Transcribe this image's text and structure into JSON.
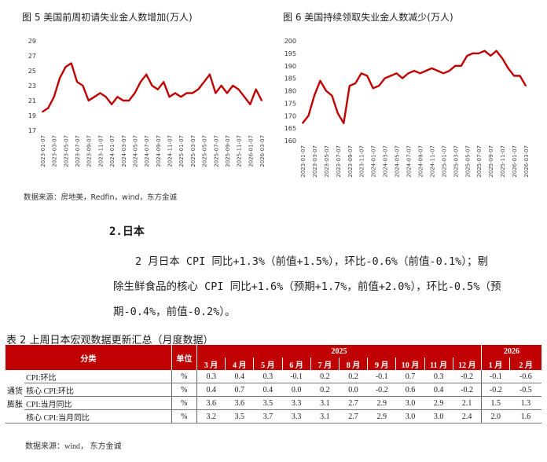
{
  "charts": {
    "fig5": {
      "title": "图 5  美国前周初请失业金人数增加(万人)",
      "yticks": [
        "29",
        "27",
        "25",
        "23",
        "21",
        "19",
        "17"
      ],
      "xticks": [
        "2023-01-07",
        "2023-03-07",
        "2023-05-07",
        "2023-07-07",
        "2023-09-07",
        "2023-11-07",
        "2024-01-07",
        "2024-03-07",
        "2024-05-07",
        "2024-07-07",
        "2024-09-07",
        "2024-11-07",
        "2025-01-07",
        "2025-03-07",
        "2025-05-07",
        "2025-07-07",
        "2025-09-07",
        "2025-11-07",
        "2026-01-07",
        "2026-03-07"
      ],
      "line_color": "#c00000"
    },
    "fig6": {
      "title": "图 6  美国持续领取失业金人数减少(万人)",
      "yticks": [
        "200",
        "195",
        "190",
        "185",
        "180",
        "175",
        "170",
        "165",
        "160"
      ],
      "xticks": [
        "2023-01-07",
        "2023-03-07",
        "2023-05-07",
        "2023-07-07",
        "2023-09-07",
        "2023-11-07",
        "2024-01-07",
        "2024-03-07",
        "2024-05-07",
        "2024-07-07",
        "2024-09-07",
        "2024-11-07",
        "2025-01-07",
        "2025-03-07",
        "2025-05-07",
        "2025-07-07",
        "2025-09-07",
        "2025-11-07",
        "2026-01-07",
        "2026-03-07"
      ],
      "line_color": "#c00000"
    },
    "source": "数据来源：房地美，Redfin，wind，东方金诚"
  },
  "chart_data": [
    {
      "type": "line",
      "title": "图 5  美国前周初请失业金人数增加(万人)",
      "x": [
        "2023-01",
        "2023-02",
        "2023-03",
        "2023-04",
        "2023-05",
        "2023-06",
        "2023-07",
        "2023-08",
        "2023-09",
        "2023-10",
        "2023-11",
        "2023-12",
        "2024-01",
        "2024-02",
        "2024-03",
        "2024-04",
        "2024-05",
        "2024-06",
        "2024-07",
        "2024-08",
        "2024-09",
        "2024-10",
        "2024-11",
        "2024-12",
        "2025-01",
        "2025-02",
        "2025-03",
        "2025-04",
        "2025-05",
        "2025-06",
        "2025-07",
        "2025-08",
        "2025-09",
        "2025-10",
        "2025-11",
        "2025-12",
        "2026-01",
        "2026-02",
        "2026-03"
      ],
      "values": [
        19.5,
        20.0,
        21.5,
        24.0,
        25.5,
        26.0,
        23.5,
        23.0,
        21.0,
        21.5,
        22.0,
        21.5,
        20.5,
        21.5,
        21.0,
        21.0,
        22.0,
        23.5,
        24.5,
        23.0,
        22.5,
        23.5,
        21.5,
        22.0,
        21.5,
        22.0,
        22.0,
        22.5,
        23.5,
        24.5,
        22.0,
        23.0,
        22.0,
        23.0,
        22.5,
        21.5,
        20.5,
        22.5,
        21.0
      ],
      "ylim": [
        17,
        29
      ]
    },
    {
      "type": "line",
      "title": "图 6  美国持续领取失业金人数减少(万人)",
      "x": [
        "2023-01",
        "2023-02",
        "2023-03",
        "2023-04",
        "2023-05",
        "2023-06",
        "2023-07",
        "2023-08",
        "2023-09",
        "2023-10",
        "2023-11",
        "2023-12",
        "2024-01",
        "2024-02",
        "2024-03",
        "2024-04",
        "2024-05",
        "2024-06",
        "2024-07",
        "2024-08",
        "2024-09",
        "2024-10",
        "2024-11",
        "2024-12",
        "2025-01",
        "2025-02",
        "2025-03",
        "2025-04",
        "2025-05",
        "2025-06",
        "2025-07",
        "2025-08",
        "2025-09",
        "2025-10",
        "2025-11",
        "2025-12",
        "2026-01",
        "2026-02",
        "2026-03"
      ],
      "values": [
        167,
        170,
        178,
        184,
        180,
        178,
        171,
        167,
        182,
        183,
        187,
        186,
        181,
        182,
        185,
        186,
        187,
        185,
        187,
        188,
        187,
        188,
        189,
        188,
        187,
        188,
        190,
        190,
        194,
        195,
        195,
        196,
        194,
        196,
        193,
        189,
        186,
        186,
        182
      ],
      "ylim": [
        160,
        200
      ]
    }
  ],
  "section": {
    "title": "2.日本"
  },
  "paragraph": {
    "line1": "2 月日本 CPI 同比+1.3%（前值+1.5%），环比-0.6%（前值-0.1%）；剔",
    "line2": "除生鲜食品的核心 CPI 同比+1.6%（预期+1.7%，前值+2.0%），环比-0.5%（预",
    "line3": "期-0.4%，前值-0.2%）。"
  },
  "table": {
    "title": "表 2  上周日本宏观数据更新汇总（月度数据）",
    "col_category": "分类",
    "col_unit": "单位",
    "year1": "2025",
    "year2": "2026",
    "months": [
      "3 月",
      "4 月",
      "5 月",
      "6 月",
      "7 月",
      "8 月",
      "9 月",
      "10 月",
      "11 月",
      "12 月",
      "1 月",
      "2 月"
    ],
    "group_line1": "通货",
    "group_line2": "膨胀",
    "rows": [
      {
        "label": "CPI:环比",
        "unit": "%",
        "values": [
          "0.3",
          "0.4",
          "0.3",
          "-0.1",
          "0.2",
          "0.2",
          "-0.1",
          "0.7",
          "0.3",
          "-0.2",
          "-0.1",
          "-0.6"
        ]
      },
      {
        "label": "核心 CPI:环比",
        "unit": "%",
        "values": [
          "0.4",
          "0.7",
          "0.4",
          "0.0",
          "0.2",
          "0.0",
          "-0.2",
          "0.6",
          "0.4",
          "-0.2",
          "-0.2",
          "-0.5"
        ]
      },
      {
        "label": "CPI:当月同比",
        "unit": "%",
        "values": [
          "3.6",
          "3.6",
          "3.5",
          "3.3",
          "3.1",
          "2.7",
          "2.9",
          "3.0",
          "2.9",
          "2.1",
          "1.5",
          "1.3"
        ]
      },
      {
        "label": "核心 CPI:当月同比",
        "unit": "%",
        "values": [
          "3.2",
          "3.5",
          "3.7",
          "3.3",
          "3.1",
          "2.7",
          "2.9",
          "3.0",
          "3.0",
          "2.4",
          "2.0",
          "1.6"
        ]
      }
    ],
    "source": "数据来源：wind，  东方金诚"
  }
}
